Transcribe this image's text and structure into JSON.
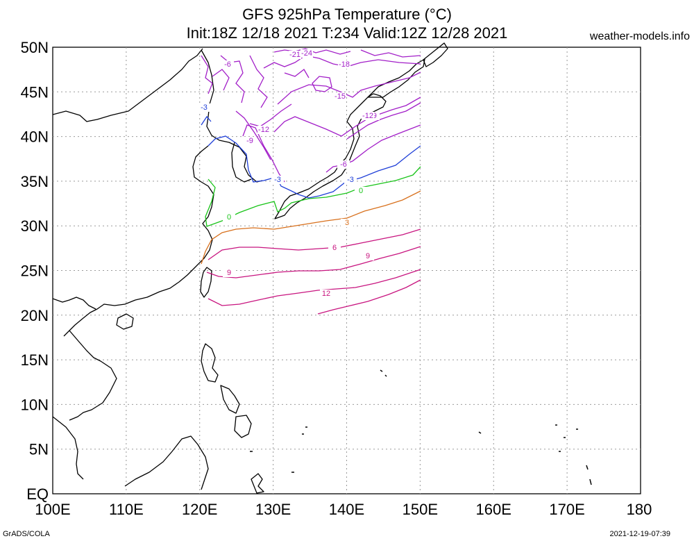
{
  "header": {
    "title_line1": "GFS 925hPa Temperature (°C)",
    "title_line2": "Init:18Z 12/18 2021 T:234 Valid:12Z 12/28 2021",
    "brand": "weather-models.info"
  },
  "footer": {
    "left": "GrADS/COLA",
    "right": "2021-12-19-07:39"
  },
  "map": {
    "lon_ticks": [
      "100E",
      "110E",
      "120E",
      "130E",
      "140E",
      "150E",
      "160E",
      "170E",
      "180"
    ],
    "lat_ticks": [
      "EQ",
      "5N",
      "10N",
      "15N",
      "20N",
      "25N",
      "30N",
      "35N",
      "40N",
      "45N",
      "50N"
    ],
    "lon_range": [
      100,
      180
    ],
    "lat_range": [
      0,
      50
    ]
  },
  "contours": [
    {
      "value": "12",
      "color": "#c8147f"
    },
    {
      "value": "9",
      "color": "#c8147f"
    },
    {
      "value": "6",
      "color": "#c8147f"
    },
    {
      "value": "3",
      "color": "#d8701c"
    },
    {
      "value": "0",
      "color": "#19c419"
    },
    {
      "value": "-3",
      "color": "#1f3fd8"
    },
    {
      "value": "-6",
      "color": "#a21ec8"
    },
    {
      "value": "-9",
      "color": "#a21ec8"
    },
    {
      "value": "-12",
      "color": "#a21ec8"
    },
    {
      "value": "-15",
      "color": "#a21ec8"
    },
    {
      "value": "-18",
      "color": "#a21ec8"
    },
    {
      "value": "-21",
      "color": "#a21ec8"
    },
    {
      "value": "-24",
      "color": "#a21ec8"
    }
  ]
}
